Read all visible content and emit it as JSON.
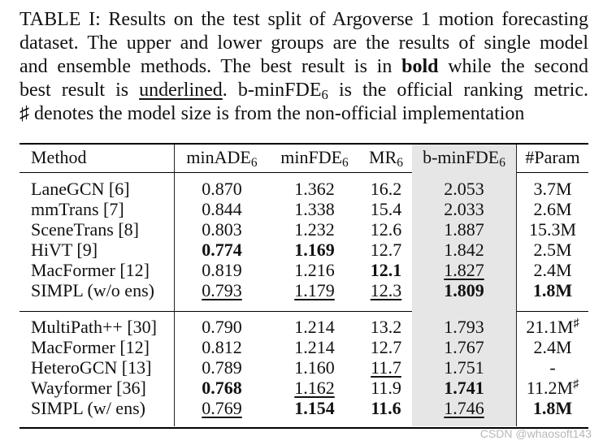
{
  "caption": {
    "l1": "TABLE I: Results on the test split of Argoverse 1 motion forecasting",
    "l2": "dataset. The upper and lower groups are the results of single model",
    "l3a": "and ensemble methods. The best result is in ",
    "l3b": "bold",
    "l3c": " while the second",
    "l4a": "best result is ",
    "l4b": "underlined",
    "l4c": ". b-minFDE",
    "l4sub": "6",
    "l4d": " is the official ranking metric.",
    "l5": "♯ denotes the model size is from the non-official implementation"
  },
  "headers": {
    "method": "Method",
    "minade": "minADE",
    "minade_sub": "6",
    "minfde": "minFDE",
    "minfde_sub": "6",
    "mr": "MR",
    "mr_sub": "6",
    "bminfde": "b-minFDE",
    "bminfde_sub": "6",
    "param": "#Param"
  },
  "rows": [
    {
      "method": "LaneGCN [6]",
      "minade": "0.870",
      "minfde": "1.362",
      "mr": "16.2",
      "bminfde": "2.053",
      "param": "3.7M",
      "param_sup": ""
    },
    {
      "method": "mmTrans [7]",
      "minade": "0.844",
      "minfde": "1.338",
      "mr": "15.4",
      "bminfde": "2.033",
      "param": "2.6M",
      "param_sup": ""
    },
    {
      "method": "SceneTrans [8]",
      "minade": "0.803",
      "minfde": "1.232",
      "mr": "12.6",
      "bminfde": "1.887",
      "param": "15.3M",
      "param_sup": ""
    },
    {
      "method": "HiVT [9]",
      "minade": "0.774",
      "minfde": "1.169",
      "mr": "12.7",
      "bminfde": "1.842",
      "param": "2.5M",
      "param_sup": ""
    },
    {
      "method": "MacFormer [12]",
      "minade": "0.819",
      "minfde": "1.216",
      "mr": "12.1",
      "bminfde": "1.827",
      "param": "2.4M",
      "param_sup": ""
    },
    {
      "method": "SIMPL (w/o ens)",
      "minade": "0.793",
      "minfde": "1.179",
      "mr": "12.3",
      "bminfde": "1.809",
      "param": "1.8M",
      "param_sup": ""
    },
    {
      "method": "MultiPath++ [30]",
      "minade": "0.790",
      "minfde": "1.214",
      "mr": "13.2",
      "bminfde": "1.793",
      "param": "21.1M",
      "param_sup": "♯"
    },
    {
      "method": "MacFormer [12]",
      "minade": "0.812",
      "minfde": "1.214",
      "mr": "12.7",
      "bminfde": "1.767",
      "param": "2.4M",
      "param_sup": ""
    },
    {
      "method": "HeteroGCN [13]",
      "minade": "0.789",
      "minfde": "1.160",
      "mr": "11.7",
      "bminfde": "1.751",
      "param": "-",
      "param_sup": ""
    },
    {
      "method": "Wayformer [36]",
      "minade": "0.768",
      "minfde": "1.162",
      "mr": "11.9",
      "bminfde": "1.741",
      "param": "11.2M",
      "param_sup": "♯"
    },
    {
      "method": "SIMPL (w/ ens)",
      "minade": "0.769",
      "minfde": "1.154",
      "mr": "11.6",
      "bminfde": "1.746",
      "param": "1.8M",
      "param_sup": ""
    }
  ],
  "watermark": "CSDN @whaosoft143"
}
